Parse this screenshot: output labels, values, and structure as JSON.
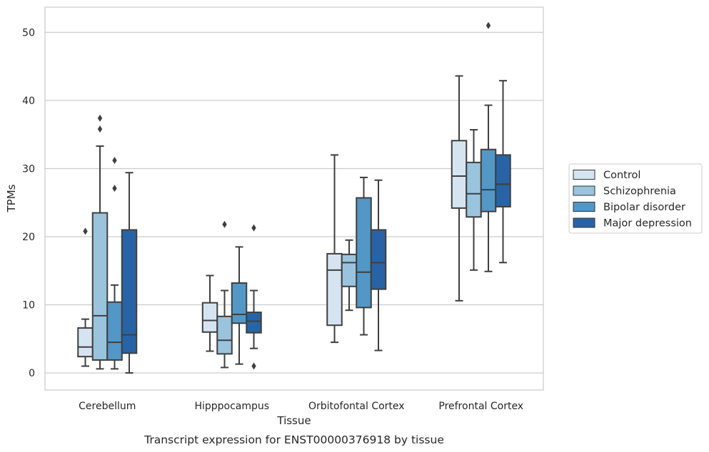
{
  "chart_data": {
    "type": "box",
    "xlabel": "Tissue",
    "ylabel": "TPMs",
    "caption": "Transcript expression for ENST00000376918 by tissue",
    "ylim": [
      -2.5,
      53.7
    ],
    "yticks": [
      0,
      10,
      20,
      30,
      40,
      50
    ],
    "grid": true,
    "legend_position": "outside-right",
    "categories": [
      "Cerebellum",
      "Hipppocampus",
      "Orbitofontal Cortex",
      "Prefrontal Cortex"
    ],
    "series": [
      {
        "name": "Control",
        "color": "#d6e4f2",
        "boxes": [
          {
            "whislo": 1.0,
            "q1": 2.4,
            "med": 3.8,
            "q3": 6.6,
            "whishi": 7.9,
            "fliers": [
              20.8
            ]
          },
          {
            "whislo": 3.2,
            "q1": 6.0,
            "med": 7.7,
            "q3": 10.3,
            "whishi": 14.3,
            "fliers": []
          },
          {
            "whislo": 4.5,
            "q1": 7.0,
            "med": 15.1,
            "q3": 17.5,
            "whishi": 32.0,
            "fliers": []
          },
          {
            "whislo": 10.6,
            "q1": 24.2,
            "med": 28.9,
            "q3": 34.1,
            "whishi": 43.6,
            "fliers": []
          }
        ]
      },
      {
        "name": "Schizophrenia",
        "color": "#9ac4de",
        "boxes": [
          {
            "whislo": 0.6,
            "q1": 1.9,
            "med": 8.4,
            "q3": 23.5,
            "whishi": 33.3,
            "fliers": [
              35.8,
              37.4
            ]
          },
          {
            "whislo": 0.8,
            "q1": 2.8,
            "med": 4.8,
            "q3": 8.3,
            "whishi": 12.1,
            "fliers": [
              21.8
            ]
          },
          {
            "whislo": 9.2,
            "q1": 12.7,
            "med": 16.2,
            "q3": 17.4,
            "whishi": 19.5,
            "fliers": []
          },
          {
            "whislo": 15.1,
            "q1": 22.9,
            "med": 26.3,
            "q3": 30.9,
            "whishi": 35.7,
            "fliers": []
          }
        ]
      },
      {
        "name": "Bipolar disorder",
        "color": "#5397c6",
        "boxes": [
          {
            "whislo": 0.6,
            "q1": 1.9,
            "med": 4.5,
            "q3": 10.4,
            "whishi": 12.9,
            "fliers": [
              27.1,
              31.2
            ]
          },
          {
            "whislo": 1.3,
            "q1": 7.3,
            "med": 8.6,
            "q3": 13.2,
            "whishi": 18.5,
            "fliers": []
          },
          {
            "whislo": 5.6,
            "q1": 9.6,
            "med": 14.8,
            "q3": 25.7,
            "whishi": 28.7,
            "fliers": []
          },
          {
            "whislo": 14.9,
            "q1": 23.7,
            "med": 26.9,
            "q3": 32.8,
            "whishi": 39.3,
            "fliers": [
              51.0
            ]
          }
        ]
      },
      {
        "name": "Major depression",
        "color": "#2864a5",
        "boxes": [
          {
            "whislo": 0.0,
            "q1": 2.9,
            "med": 5.6,
            "q3": 21.0,
            "whishi": 29.4,
            "fliers": []
          },
          {
            "whislo": 3.6,
            "q1": 5.9,
            "med": 7.6,
            "q3": 8.9,
            "whishi": 12.1,
            "fliers": [
              1.0,
              21.3
            ]
          },
          {
            "whislo": 3.3,
            "q1": 12.3,
            "med": 16.2,
            "q3": 21.0,
            "whishi": 28.3,
            "fliers": []
          },
          {
            "whislo": 16.2,
            "q1": 24.4,
            "med": 27.7,
            "q3": 32.0,
            "whishi": 42.9,
            "fliers": []
          }
        ]
      }
    ]
  }
}
